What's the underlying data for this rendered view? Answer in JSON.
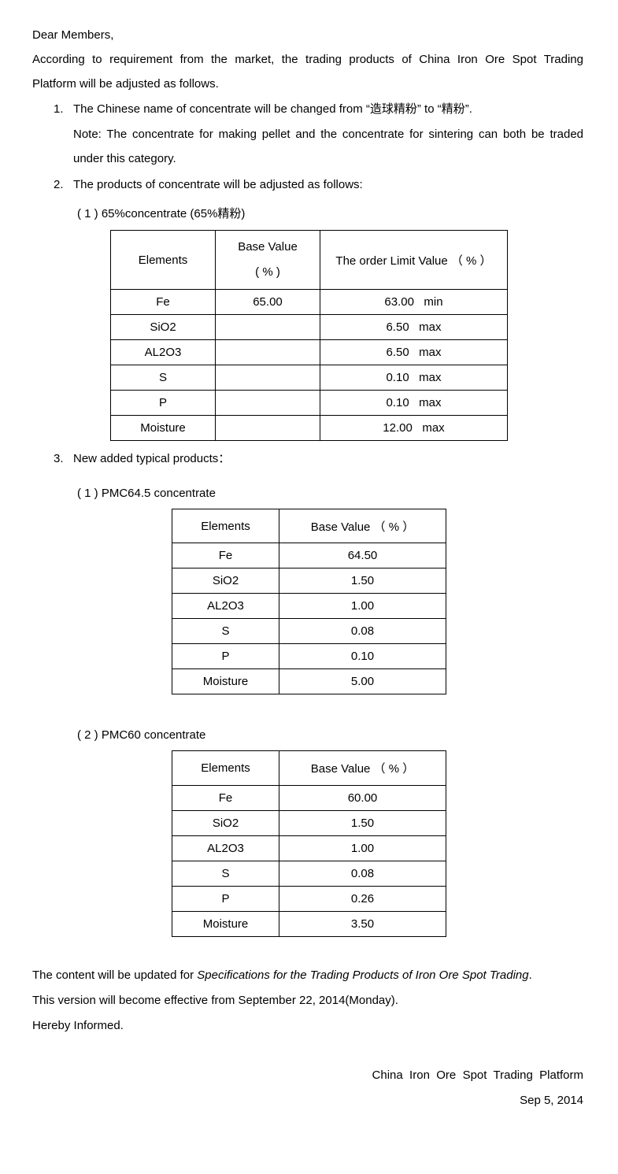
{
  "greeting": "Dear Members,",
  "intro_line1": "According to requirement from the market, the trading products of China Iron Ore Spot Trading",
  "intro_line2": "Platform will be adjusted as follows.",
  "item1": {
    "num": "1.",
    "text": "The Chinese name of concentrate will be changed from “造球精粉” to “精粉”.",
    "note_line1": "Note: The concentrate for making pellet and the concentrate for sintering can both be traded",
    "note_line2": "under this category."
  },
  "item2": {
    "num": "2.",
    "text": "The products of concentrate will be adjusted as follows:",
    "sub1": "( 1 ) 65%concentrate (65%精粉)"
  },
  "table1": {
    "headers": [
      "Elements",
      "Base Value",
      "( % )",
      "The order Limit Value （ % ）"
    ],
    "rows": [
      [
        "Fe",
        "65.00",
        "63.00   min"
      ],
      [
        "SiO2",
        "",
        "6.50   max"
      ],
      [
        "AL2O3",
        "",
        "6.50   max"
      ],
      [
        "S",
        "",
        "0.10   max"
      ],
      [
        "P",
        "",
        "0.10   max"
      ],
      [
        "Moisture",
        "",
        "12.00   max"
      ]
    ]
  },
  "item3": {
    "num": "3.",
    "text": "New added typical products：",
    "sub1": "( 1 ) PMC64.5 concentrate",
    "sub2": "( 2 ) PMC60 concentrate"
  },
  "table2": {
    "headers": [
      "Elements",
      "Base Value （ % ）"
    ],
    "rows": [
      [
        "Fe",
        "64.50"
      ],
      [
        "SiO2",
        "1.50"
      ],
      [
        "AL2O3",
        "1.00"
      ],
      [
        "S",
        "0.08"
      ],
      [
        "P",
        "0.10"
      ],
      [
        "Moisture",
        "5.00"
      ]
    ]
  },
  "table3": {
    "headers": [
      "Elements",
      "Base Value （ % ）"
    ],
    "rows": [
      [
        "Fe",
        "60.00"
      ],
      [
        "SiO2",
        "1.50"
      ],
      [
        "AL2O3",
        "1.00"
      ],
      [
        "S",
        "0.08"
      ],
      [
        "P",
        "0.26"
      ],
      [
        "Moisture",
        "3.50"
      ]
    ]
  },
  "closing": {
    "line1_prefix": "The content will be updated for ",
    "line1_italic": "Specifications for the Trading Products of Iron Ore Spot Trading",
    "line1_suffix": ".",
    "line2": "This version will become effective from September 22, 2014(Monday).",
    "line3": "Hereby Informed."
  },
  "signature": {
    "org": "China  Iron  Ore  Spot  Trading  Platform",
    "date": "Sep 5, 2014"
  }
}
